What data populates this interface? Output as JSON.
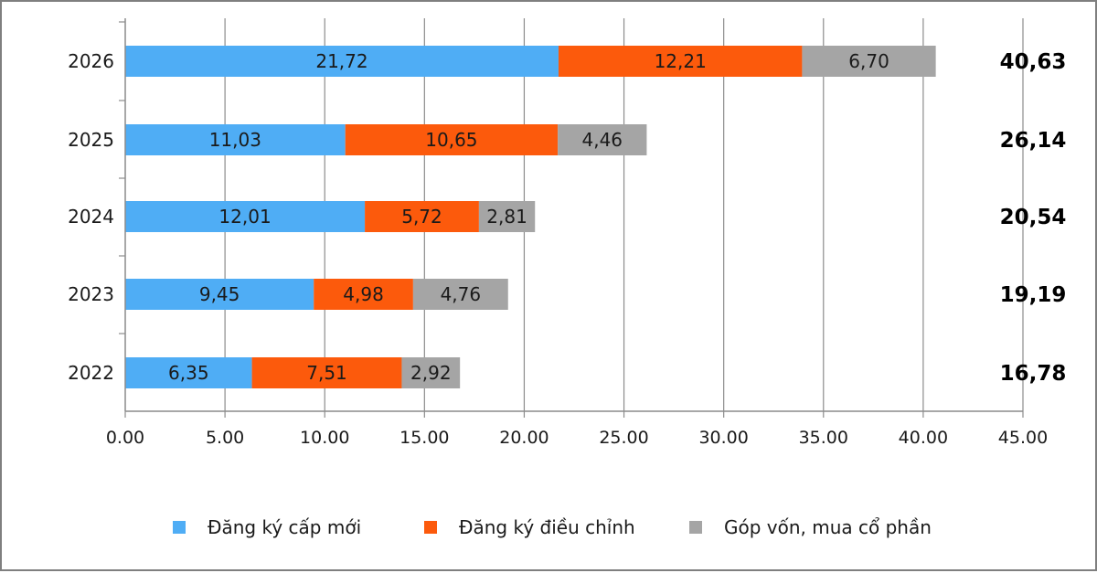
{
  "chart_data": {
    "type": "bar",
    "orientation": "horizontal",
    "stacked": true,
    "categories": [
      "2026",
      "2025",
      "2024",
      "2023",
      "2022"
    ],
    "series": [
      {
        "name": "Đăng ký cấp mới",
        "color": "#4fadf5",
        "values": [
          21.72,
          11.03,
          12.01,
          9.45,
          6.35
        ],
        "labels": [
          "21,72",
          "11,03",
          "12,01",
          "9,45",
          "6,35"
        ]
      },
      {
        "name": "Đăng ký điều chỉnh",
        "color": "#fc5a0c",
        "values": [
          12.21,
          10.65,
          5.72,
          4.98,
          7.51
        ],
        "labels": [
          "12,21",
          "10,65",
          "5,72",
          "4,98",
          "7,51"
        ]
      },
      {
        "name": "Góp vốn, mua cổ phần",
        "color": "#a5a5a5",
        "values": [
          6.7,
          4.46,
          2.81,
          4.76,
          2.92
        ],
        "labels": [
          "6,70",
          "4,46",
          "2,81",
          "4,76",
          "2,92"
        ]
      }
    ],
    "totals": [
      "40,63",
      "26,14",
      "20,54",
      "19,19",
      "16,78"
    ],
    "xlim": [
      0,
      45
    ],
    "x_ticks": [
      "0.00",
      "5.00",
      "10.00",
      "15.00",
      "20.00",
      "25.00",
      "30.00",
      "35.00",
      "40.00",
      "45.00"
    ],
    "grid": "vertical",
    "legend_position": "bottom"
  }
}
